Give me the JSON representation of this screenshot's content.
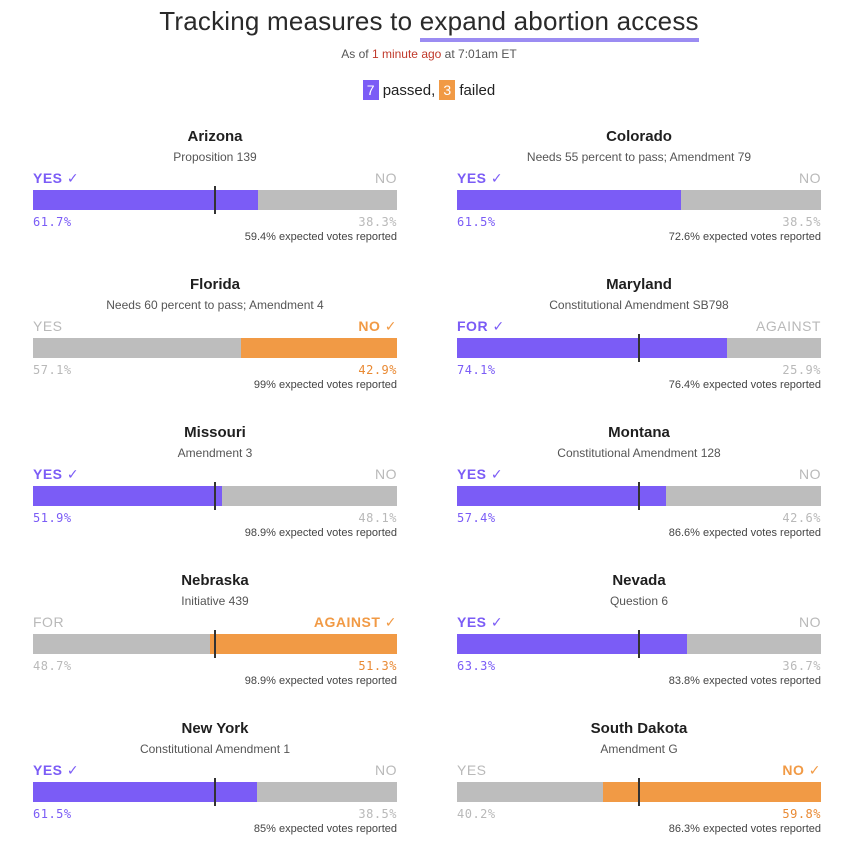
{
  "header": {
    "title_prefix": "Tracking measures to ",
    "title_highlight": "expand abortion access",
    "asof_prefix": "As of ",
    "asof_recent": "1 minute ago",
    "asof_suffix": " at 7:01am ET"
  },
  "summary": {
    "passed_count": "7",
    "passed_label": " passed, ",
    "failed_count": "3",
    "failed_label": " failed"
  },
  "colors": {
    "yes": "#7b5cf6",
    "no": "#f19a45",
    "neutral": "#bdbdbd"
  },
  "chart_data": {
    "type": "bar",
    "measures": [
      {
        "state": "Arizona",
        "measure": "Proposition 139",
        "left_label": "YES ✓",
        "right_label": "NO",
        "left_pct": "61.7%",
        "right_pct": "38.3%",
        "left_value": 61.7,
        "right_value": 38.3,
        "winner": "left",
        "threshold": 50,
        "reported": "59.4% expected votes reported"
      },
      {
        "state": "Colorado",
        "measure": "Needs 55 percent to pass; Amendment 79",
        "left_label": "YES ✓",
        "right_label": "NO",
        "left_pct": "61.5%",
        "right_pct": "38.5%",
        "left_value": 61.5,
        "right_value": 38.5,
        "winner": "left",
        "threshold": null,
        "reported": "72.6% expected votes reported"
      },
      {
        "state": "Florida",
        "measure": "Needs 60 percent to pass; Amendment 4",
        "left_label": "YES",
        "right_label": "NO ✓",
        "left_pct": "57.1%",
        "right_pct": "42.9%",
        "left_value": 57.1,
        "right_value": 42.9,
        "winner": "right",
        "threshold": null,
        "reported": "99% expected votes reported"
      },
      {
        "state": "Maryland",
        "measure": "Constitutional Amendment SB798",
        "left_label": "FOR ✓",
        "right_label": "AGAINST",
        "left_pct": "74.1%",
        "right_pct": "25.9%",
        "left_value": 74.1,
        "right_value": 25.9,
        "winner": "left",
        "threshold": 50,
        "reported": "76.4% expected votes reported"
      },
      {
        "state": "Missouri",
        "measure": "Amendment 3",
        "left_label": "YES ✓",
        "right_label": "NO",
        "left_pct": "51.9%",
        "right_pct": "48.1%",
        "left_value": 51.9,
        "right_value": 48.1,
        "winner": "left",
        "threshold": 50,
        "reported": "98.9% expected votes reported"
      },
      {
        "state": "Montana",
        "measure": "Constitutional Amendment 128",
        "left_label": "YES ✓",
        "right_label": "NO",
        "left_pct": "57.4%",
        "right_pct": "42.6%",
        "left_value": 57.4,
        "right_value": 42.6,
        "winner": "left",
        "threshold": 50,
        "reported": "86.6% expected votes reported"
      },
      {
        "state": "Nebraska",
        "measure": "Initiative 439",
        "left_label": "FOR",
        "right_label": "AGAINST ✓",
        "left_pct": "48.7%",
        "right_pct": "51.3%",
        "left_value": 48.7,
        "right_value": 51.3,
        "winner": "right",
        "threshold": 50,
        "reported": "98.9% expected votes reported"
      },
      {
        "state": "Nevada",
        "measure": "Question 6",
        "left_label": "YES ✓",
        "right_label": "NO",
        "left_pct": "63.3%",
        "right_pct": "36.7%",
        "left_value": 63.3,
        "right_value": 36.7,
        "winner": "left",
        "threshold": 50,
        "reported": "83.8% expected votes reported"
      },
      {
        "state": "New York",
        "measure": "Constitutional Amendment 1",
        "left_label": "YES ✓",
        "right_label": "NO",
        "left_pct": "61.5%",
        "right_pct": "38.5%",
        "left_value": 61.5,
        "right_value": 38.5,
        "winner": "left",
        "threshold": 50,
        "reported": "85% expected votes reported"
      },
      {
        "state": "South Dakota",
        "measure": "Amendment G",
        "left_label": "YES",
        "right_label": "NO ✓",
        "left_pct": "40.2%",
        "right_pct": "59.8%",
        "left_value": 40.2,
        "right_value": 59.8,
        "winner": "right",
        "threshold": 50,
        "reported": "86.3% expected votes reported"
      }
    ]
  }
}
